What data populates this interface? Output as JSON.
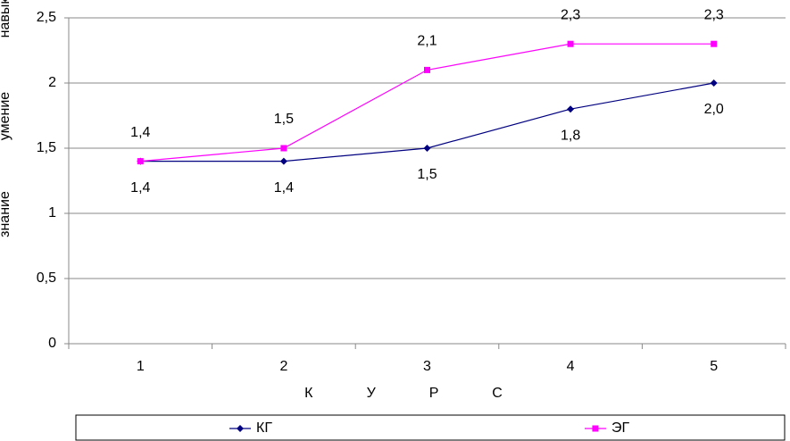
{
  "chart_data": {
    "type": "line",
    "categories": [
      "1",
      "2",
      "3",
      "4",
      "5"
    ],
    "x_label": "КУРС",
    "y_annotations": [
      "навык",
      "умение",
      "знание"
    ],
    "series": [
      {
        "name": "КГ",
        "color": "#000080",
        "marker": "diamond",
        "label_position": "below",
        "values": [
          1.4,
          1.4,
          1.5,
          1.8,
          2.0
        ],
        "value_labels": [
          "1,4",
          "1,4",
          "1,5",
          "1,8",
          "2,0"
        ]
      },
      {
        "name": "ЭГ",
        "color": "#ff00ff",
        "marker": "square",
        "label_position": "above",
        "values": [
          1.4,
          1.5,
          2.1,
          2.3,
          2.3
        ],
        "value_labels": [
          "1,4",
          "1,5",
          "2,1",
          "2,3",
          "2,3"
        ]
      }
    ],
    "ylim": [
      0,
      2.5
    ],
    "yticks": [
      0,
      {
        "value": 0.5,
        "label": "0,5"
      },
      1,
      {
        "value": 1.5,
        "label": "1,5"
      },
      2,
      {
        "value": 2.5,
        "label": "2,5"
      }
    ],
    "grid": true,
    "legend": "bottom"
  }
}
